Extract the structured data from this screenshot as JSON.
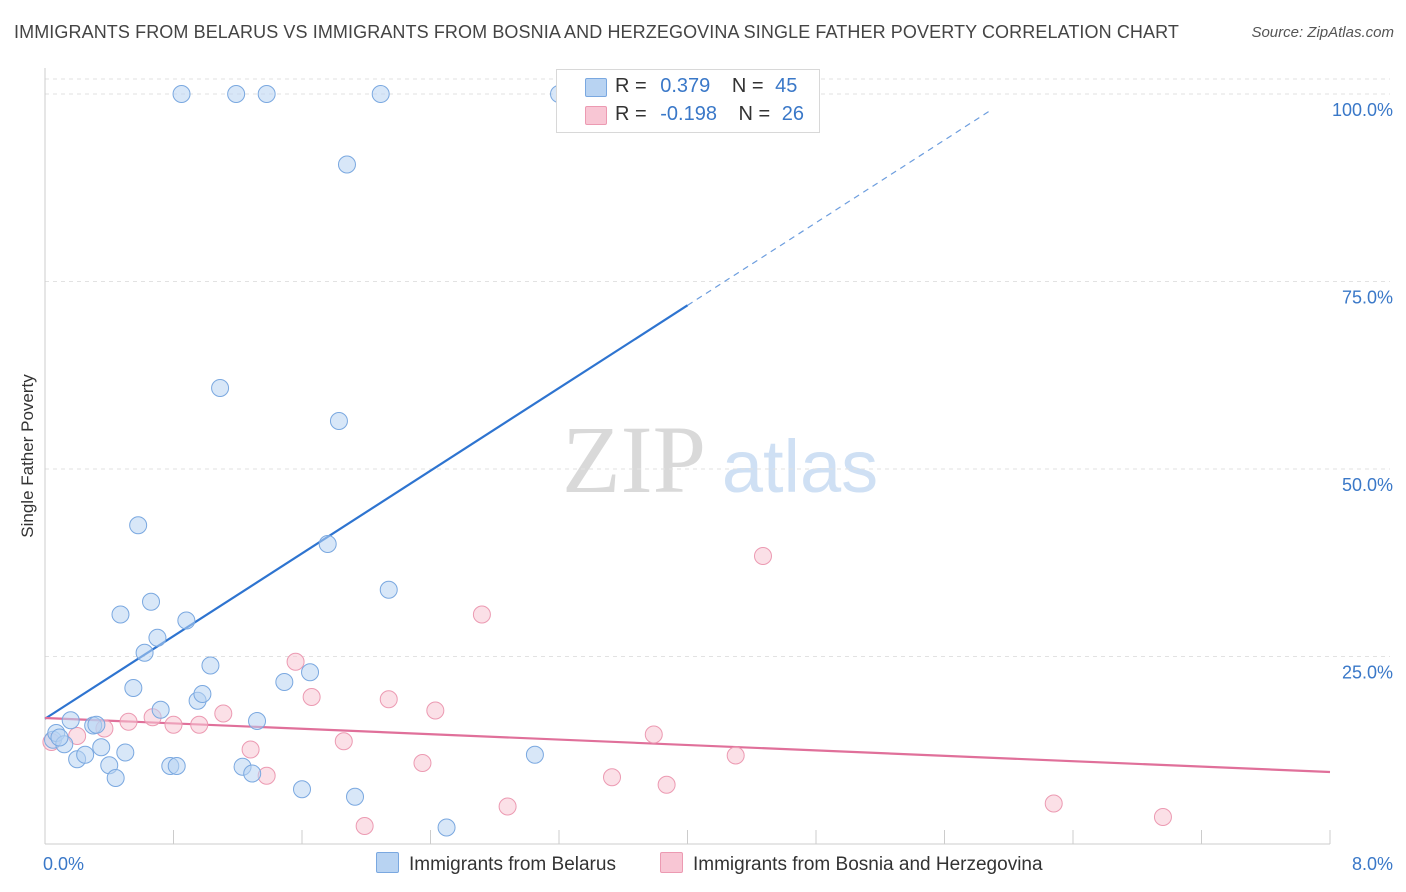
{
  "title": "IMMIGRANTS FROM BELARUS VS IMMIGRANTS FROM BOSNIA AND HERZEGOVINA SINGLE FATHER POVERTY CORRELATION CHART",
  "source": "Source: ZipAtlas.com",
  "watermark": {
    "zip": "ZIP",
    "atlas": "atlas"
  },
  "legend_top": {
    "rows": [
      {
        "r_label": "R =",
        "r_value": "0.379",
        "n_label": "N =",
        "n_value": "45"
      },
      {
        "r_label": "R =",
        "r_value": "-0.198",
        "n_label": "N =",
        "n_value": "26"
      }
    ]
  },
  "colors": {
    "blue_fill": "#b8d3f2",
    "blue_stroke": "#7aa8e0",
    "blue_line": "#2e74d0",
    "pink_fill": "#f8c6d4",
    "pink_stroke": "#ec9ab2",
    "pink_line": "#e0709a",
    "tick_label": "#3a78c8",
    "grid": "#e2e2e2"
  },
  "chart_data": {
    "type": "scatter",
    "title": "IMMIGRANTS FROM BELARUS VS IMMIGRANTS FROM BOSNIA AND HERZEGOVINA SINGLE FATHER POVERTY CORRELATION CHART",
    "xlabel": "",
    "ylabel": "Single Father Poverty",
    "xlim": [
      0,
      8
    ],
    "ylim": [
      0,
      102
    ],
    "x_tick_labels": [
      "0.0%",
      "8.0%"
    ],
    "y_ticks": [
      25,
      50,
      75,
      100
    ],
    "y_tick_labels": [
      "25.0%",
      "50.0%",
      "75.0%",
      "100.0%"
    ],
    "grid": "horizontal dashed",
    "legend_position": "top-center",
    "series": [
      {
        "name": "Immigrants from Belarus",
        "color": "#b8d3f2",
        "trend": {
          "x": [
            0.0,
            5.9
          ],
          "y": [
            16.7,
            98.0
          ],
          "solid_until_x": 4.0
        },
        "points": [
          {
            "x": 0.05,
            "y": 13.9
          },
          {
            "x": 0.07,
            "y": 14.8
          },
          {
            "x": 0.12,
            "y": 13.3
          },
          {
            "x": 0.16,
            "y": 16.5
          },
          {
            "x": 0.2,
            "y": 11.3
          },
          {
            "x": 0.25,
            "y": 11.9
          },
          {
            "x": 0.3,
            "y": 15.8
          },
          {
            "x": 0.32,
            "y": 15.9
          },
          {
            "x": 0.35,
            "y": 12.9
          },
          {
            "x": 0.4,
            "y": 10.5
          },
          {
            "x": 0.44,
            "y": 8.8
          },
          {
            "x": 0.47,
            "y": 30.6
          },
          {
            "x": 0.5,
            "y": 12.2
          },
          {
            "x": 0.55,
            "y": 20.8
          },
          {
            "x": 0.58,
            "y": 42.5
          },
          {
            "x": 0.62,
            "y": 25.5
          },
          {
            "x": 0.66,
            "y": 32.3
          },
          {
            "x": 0.7,
            "y": 27.5
          },
          {
            "x": 0.72,
            "y": 17.9
          },
          {
            "x": 0.78,
            "y": 10.4
          },
          {
            "x": 0.82,
            "y": 10.4
          },
          {
            "x": 0.85,
            "y": 100.0
          },
          {
            "x": 0.88,
            "y": 29.8
          },
          {
            "x": 0.95,
            "y": 19.1
          },
          {
            "x": 0.98,
            "y": 20.0
          },
          {
            "x": 1.03,
            "y": 23.8
          },
          {
            "x": 1.09,
            "y": 60.8
          },
          {
            "x": 1.19,
            "y": 100.0
          },
          {
            "x": 1.23,
            "y": 10.3
          },
          {
            "x": 1.29,
            "y": 9.4
          },
          {
            "x": 1.32,
            "y": 16.4
          },
          {
            "x": 1.38,
            "y": 100.0
          },
          {
            "x": 1.49,
            "y": 21.6
          },
          {
            "x": 1.6,
            "y": 7.3
          },
          {
            "x": 1.65,
            "y": 22.9
          },
          {
            "x": 1.76,
            "y": 40.0
          },
          {
            "x": 1.83,
            "y": 56.4
          },
          {
            "x": 1.88,
            "y": 90.6
          },
          {
            "x": 1.93,
            "y": 6.3
          },
          {
            "x": 2.09,
            "y": 100.0
          },
          {
            "x": 2.14,
            "y": 33.9
          },
          {
            "x": 2.5,
            "y": 2.2
          },
          {
            "x": 3.05,
            "y": 11.9
          },
          {
            "x": 3.2,
            "y": 100.0
          },
          {
            "x": 0.09,
            "y": 14.2
          }
        ]
      },
      {
        "name": "Immigrants from Bosnia and Herzegovina",
        "color": "#f8c6d4",
        "trend": {
          "x": [
            0.0,
            8.0
          ],
          "y": [
            16.8,
            9.6
          ]
        },
        "points": [
          {
            "x": 0.04,
            "y": 13.6
          },
          {
            "x": 0.2,
            "y": 14.4
          },
          {
            "x": 0.37,
            "y": 15.4
          },
          {
            "x": 0.52,
            "y": 16.3
          },
          {
            "x": 0.67,
            "y": 16.9
          },
          {
            "x": 0.8,
            "y": 15.9
          },
          {
            "x": 0.96,
            "y": 15.9
          },
          {
            "x": 1.11,
            "y": 17.4
          },
          {
            "x": 1.28,
            "y": 12.6
          },
          {
            "x": 1.38,
            "y": 9.1
          },
          {
            "x": 1.56,
            "y": 24.3
          },
          {
            "x": 1.66,
            "y": 19.6
          },
          {
            "x": 1.86,
            "y": 13.7
          },
          {
            "x": 1.99,
            "y": 2.4
          },
          {
            "x": 2.14,
            "y": 19.3
          },
          {
            "x": 2.35,
            "y": 10.8
          },
          {
            "x": 2.43,
            "y": 17.8
          },
          {
            "x": 2.72,
            "y": 30.6
          },
          {
            "x": 2.88,
            "y": 5.0
          },
          {
            "x": 3.53,
            "y": 8.9
          },
          {
            "x": 3.79,
            "y": 14.6
          },
          {
            "x": 3.87,
            "y": 7.9
          },
          {
            "x": 4.3,
            "y": 11.8
          },
          {
            "x": 4.47,
            "y": 38.4
          },
          {
            "x": 6.28,
            "y": 5.4
          },
          {
            "x": 6.96,
            "y": 3.6
          }
        ]
      }
    ]
  }
}
